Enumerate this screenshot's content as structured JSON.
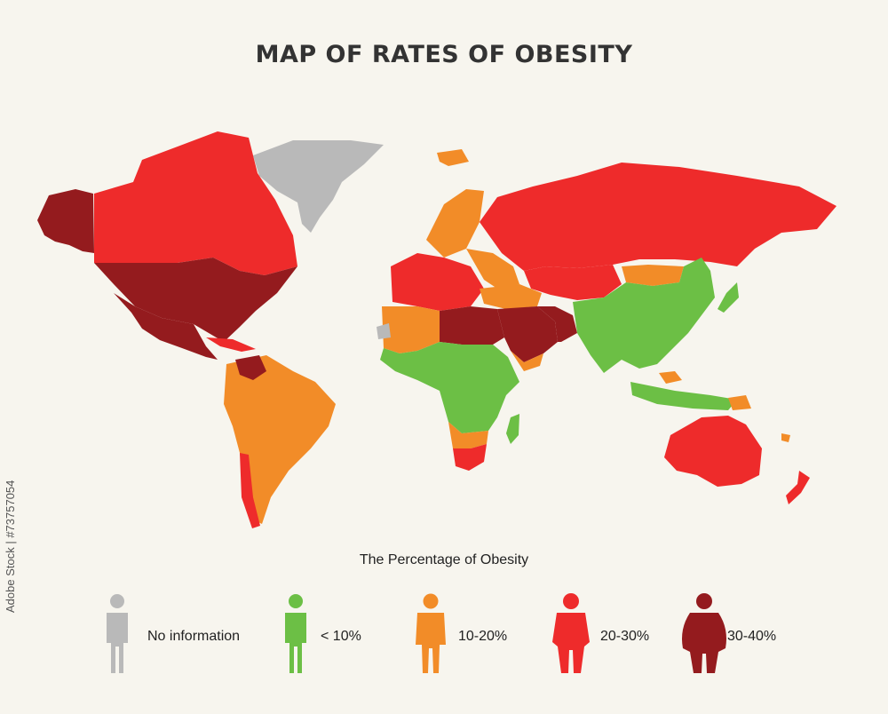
{
  "title": "MAP OF RATES OF OBESITY",
  "legend_title": "The Percentage of Obesity",
  "legend": [
    {
      "label": "No information",
      "color": "#b9b9b9",
      "icon": "person-thin-icon"
    },
    {
      "label": "< 10%",
      "color": "#6cbf45",
      "icon": "person-thin-icon"
    },
    {
      "label": "10-20%",
      "color": "#f28c28",
      "icon": "person-medium-icon"
    },
    {
      "label": "20-30%",
      "color": "#ee2b2b",
      "icon": "person-heavy-icon"
    },
    {
      "label": "30-40%",
      "color": "#941b1e",
      "icon": "person-obese-icon"
    }
  ],
  "side_text": "Adobe Stock | #73757054"
}
